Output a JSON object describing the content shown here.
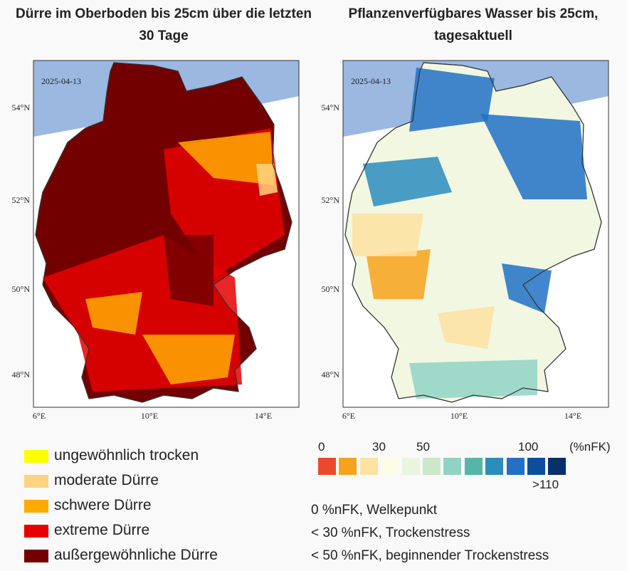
{
  "panels": [
    {
      "title": "Dürre im Oberboden bis 25cm über die letzten 30 Tage",
      "date": "2025-04-13",
      "lat_labels": [
        "54°N",
        "52°N",
        "50°N",
        "48°N"
      ],
      "lon_labels": [
        "6°E",
        "10°E",
        "14°E"
      ]
    },
    {
      "title": "Pflanzenverfügbares Wasser bis 25cm, tagesaktuell",
      "date": "2025-04-13",
      "lat_labels": [
        "54°N",
        "52°N",
        "50°N",
        "48°N"
      ],
      "lon_labels": [
        "6°E",
        "10°E",
        "14°E"
      ]
    }
  ],
  "legend": [
    {
      "label": "ungewöhnlich trocken",
      "color": "#ffff00"
    },
    {
      "label": "moderate Dürre",
      "color": "#ffd37f"
    },
    {
      "label": "schwere Dürre",
      "color": "#ffaa00"
    },
    {
      "label": "extreme Dürre",
      "color": "#e60000"
    },
    {
      "label": "außergewöhnliche Dürre",
      "color": "#730000"
    }
  ],
  "scale": {
    "labels": [
      "0",
      "30",
      "50",
      "100"
    ],
    "unit": "(%nFK)",
    "over": ">110",
    "colors": [
      "#ea4a2a",
      "#f7a21b",
      "#fde2a0",
      "#fbfbe6",
      "#e9f5dd",
      "#cbe9c8",
      "#8fd3c4",
      "#55b5a8",
      "#2b8cbe",
      "#2171c4",
      "#0b4f9c",
      "#08306b"
    ]
  },
  "notes": [
    "0 %nFK, Welkepunkt",
    "< 30 %nFK, Trockenstress",
    "< 50 %nFK, beginnender Trockenstress"
  ]
}
